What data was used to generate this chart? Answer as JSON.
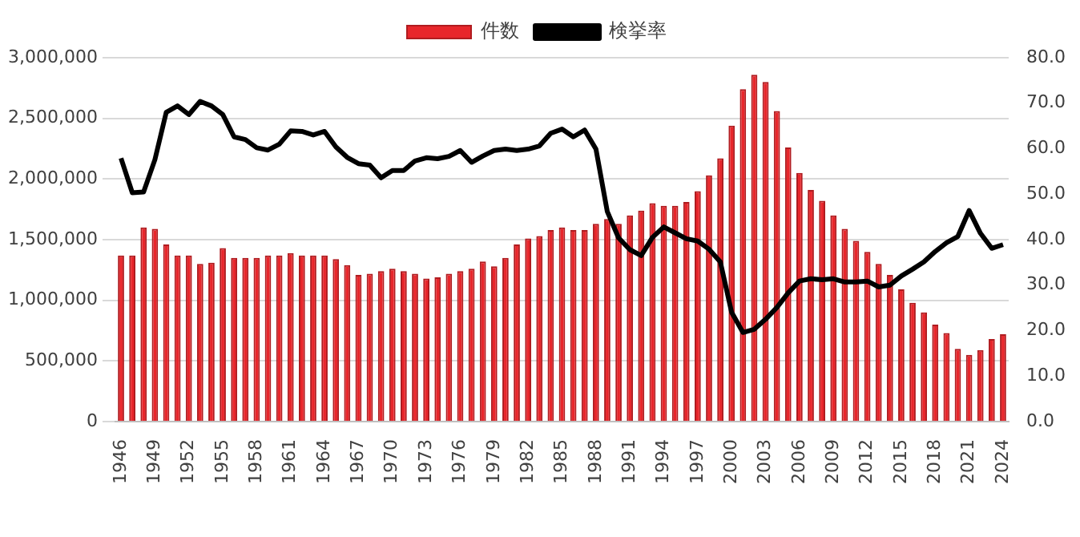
{
  "chart_data": {
    "type": "bar",
    "categories": [
      "1946",
      null,
      null,
      "1949",
      null,
      null,
      "1952",
      null,
      null,
      "1955",
      null,
      null,
      "1958",
      null,
      null,
      "1961",
      null,
      null,
      "1964",
      null,
      null,
      "1967",
      null,
      null,
      "1970",
      null,
      null,
      "1973",
      null,
      null,
      "1976",
      null,
      null,
      "1979",
      null,
      null,
      "1982",
      null,
      null,
      "1985",
      null,
      null,
      "1988",
      null,
      null,
      "1991",
      null,
      null,
      "1994",
      null,
      null,
      "1997",
      null,
      null,
      "2000",
      null,
      null,
      "2003",
      null,
      null,
      "2006",
      null,
      null,
      "2009",
      null,
      null,
      "2012",
      null,
      null,
      "2015",
      null,
      null,
      "2018",
      null,
      null,
      "2021",
      null,
      null,
      "2024"
    ],
    "series": [
      {
        "name": "件数",
        "color": "#e8262b",
        "values": [
          1370000,
          1370000,
          1600000,
          1590000,
          1460000,
          1370000,
          1370000,
          1300000,
          1310000,
          1430000,
          1350000,
          1350000,
          1350000,
          1370000,
          1370000,
          1390000,
          1370000,
          1370000,
          1370000,
          1340000,
          1290000,
          1210000,
          1220000,
          1240000,
          1260000,
          1240000,
          1220000,
          1180000,
          1190000,
          1220000,
          1240000,
          1260000,
          1320000,
          1280000,
          1350000,
          1460000,
          1510000,
          1530000,
          1580000,
          1600000,
          1580000,
          1580000,
          1630000,
          1670000,
          1630000,
          1700000,
          1740000,
          1800000,
          1780000,
          1780000,
          1810000,
          1900000,
          2030000,
          2170000,
          2440000,
          2740000,
          2860000,
          2800000,
          2560000,
          2260000,
          2050000,
          1910000,
          1820000,
          1700000,
          1590000,
          1490000,
          1400000,
          1300000,
          1210000,
          1090000,
          980000,
          900000,
          800000,
          730000,
          600000,
          550000,
          590000,
          680000,
          720000
        ]
      },
      {
        "name": "検挙率",
        "type": "line",
        "axis": "y2",
        "color": "#000000",
        "values": [
          57.9,
          50.3,
          50.5,
          57.6,
          68.0,
          69.4,
          67.5,
          70.4,
          69.4,
          67.5,
          62.6,
          62.0,
          60.2,
          59.7,
          61.0,
          63.9,
          63.8,
          63.0,
          63.8,
          60.4,
          58.1,
          56.7,
          56.4,
          53.6,
          55.2,
          55.2,
          57.3,
          58.0,
          57.8,
          58.3,
          59.6,
          57.0,
          58.4,
          59.6,
          59.9,
          59.6,
          59.9,
          60.6,
          63.4,
          64.3,
          62.6,
          64.1,
          59.9,
          46.2,
          40.4,
          37.8,
          36.5,
          40.5,
          42.8,
          41.5,
          40.2,
          39.7,
          37.9,
          35.1,
          24.0,
          19.6,
          20.3,
          22.5,
          25.1,
          28.3,
          30.9,
          31.4,
          31.2,
          31.4,
          30.7,
          30.7,
          30.9,
          29.6,
          30.0,
          32.0,
          33.5,
          35.1,
          37.4,
          39.3,
          40.7,
          46.4,
          41.4,
          38.1,
          38.9
        ]
      }
    ],
    "ylim": [
      0,
      3000000
    ],
    "yticks": [
      {
        "value": 0,
        "label": "0"
      },
      {
        "value": 500000,
        "label": "500,000"
      },
      {
        "value": 1000000,
        "label": "1,000,000"
      },
      {
        "value": 1500000,
        "label": "1,500,000"
      },
      {
        "value": 2000000,
        "label": "2,000,000"
      },
      {
        "value": 2500000,
        "label": "2,500,000"
      },
      {
        "value": 3000000,
        "label": "3,000,000"
      }
    ],
    "y2lim": [
      0,
      80
    ],
    "y2ticks": [
      {
        "value": 0,
        "label": "0.0"
      },
      {
        "value": 10,
        "label": "10.0"
      },
      {
        "value": 20,
        "label": "20.0"
      },
      {
        "value": 30,
        "label": "30.0"
      },
      {
        "value": 40,
        "label": "40.0"
      },
      {
        "value": 50,
        "label": "50.0"
      },
      {
        "value": 60,
        "label": "60.0"
      },
      {
        "value": 70,
        "label": "70.0"
      },
      {
        "value": 80,
        "label": "80.0"
      }
    ],
    "grid": "y",
    "legend": "top",
    "marker": "none",
    "line_style": "solid"
  }
}
